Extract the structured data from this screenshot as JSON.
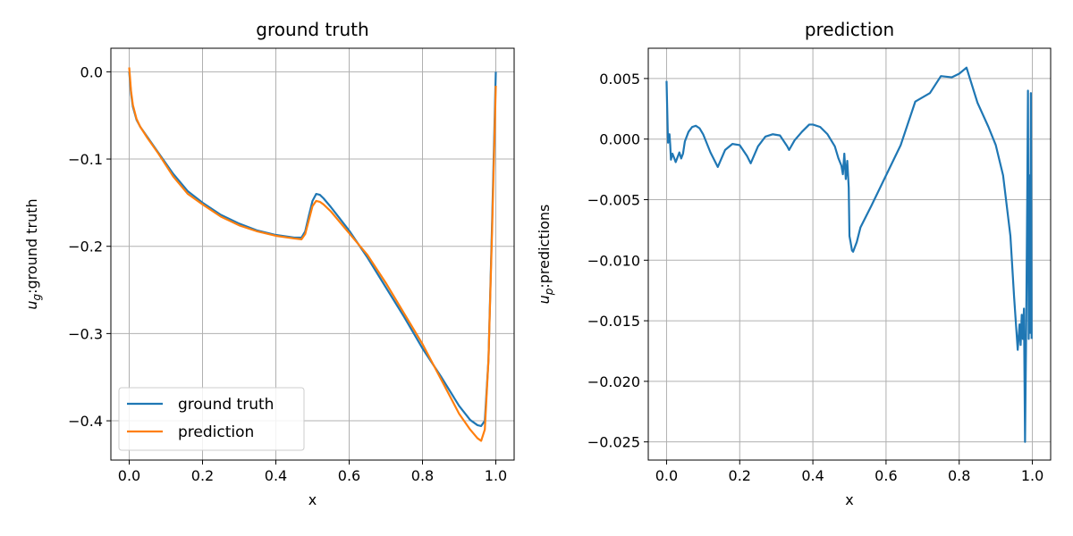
{
  "chart_data": [
    {
      "type": "line",
      "title": "ground truth",
      "xlabel": "x",
      "ylabel_main": "u",
      "ylabel_sub": "g",
      "ylabel_rest": ":ground truth",
      "xlim": [
        -0.05,
        1.05
      ],
      "ylim": [
        -0.445,
        0.027
      ],
      "xticks": [
        0.0,
        0.2,
        0.4,
        0.6,
        0.8,
        1.0
      ],
      "xtick_labels": [
        "0.0",
        "0.2",
        "0.4",
        "0.6",
        "0.8",
        "1.0"
      ],
      "yticks": [
        0.0,
        -0.1,
        -0.2,
        -0.3,
        -0.4
      ],
      "ytick_labels": [
        "0.0",
        "−0.1",
        "−0.2",
        "−0.3",
        "−0.4"
      ],
      "grid": true,
      "legend": "lower-left",
      "series": [
        {
          "name": "ground truth",
          "color": "#1f77b4",
          "x": [
            0.0,
            0.005,
            0.01,
            0.02,
            0.03,
            0.05,
            0.08,
            0.12,
            0.16,
            0.2,
            0.25,
            0.3,
            0.35,
            0.4,
            0.45,
            0.47,
            0.48,
            0.49,
            0.5,
            0.51,
            0.52,
            0.53,
            0.55,
            0.6,
            0.65,
            0.7,
            0.75,
            0.8,
            0.85,
            0.9,
            0.93,
            0.95,
            0.96,
            0.97,
            0.98,
            0.99,
            1.0
          ],
          "y": [
            0.0,
            -0.025,
            -0.04,
            -0.055,
            -0.063,
            -0.075,
            -0.093,
            -0.117,
            -0.137,
            -0.15,
            -0.164,
            -0.174,
            -0.182,
            -0.187,
            -0.19,
            -0.19,
            -0.183,
            -0.165,
            -0.148,
            -0.14,
            -0.141,
            -0.145,
            -0.155,
            -0.182,
            -0.213,
            -0.247,
            -0.281,
            -0.317,
            -0.349,
            -0.383,
            -0.399,
            -0.405,
            -0.406,
            -0.4,
            -0.33,
            -0.17,
            0.0
          ]
        },
        {
          "name": "prediction",
          "color": "#ff7f0e",
          "x": [
            0.0,
            0.005,
            0.01,
            0.02,
            0.03,
            0.05,
            0.08,
            0.12,
            0.16,
            0.2,
            0.25,
            0.3,
            0.35,
            0.4,
            0.45,
            0.47,
            0.48,
            0.49,
            0.5,
            0.51,
            0.52,
            0.53,
            0.55,
            0.6,
            0.65,
            0.7,
            0.75,
            0.8,
            0.85,
            0.9,
            0.93,
            0.95,
            0.96,
            0.97,
            0.98,
            0.99,
            1.0
          ],
          "y": [
            0.005,
            -0.022,
            -0.038,
            -0.054,
            -0.063,
            -0.076,
            -0.094,
            -0.12,
            -0.14,
            -0.152,
            -0.166,
            -0.176,
            -0.183,
            -0.188,
            -0.191,
            -0.192,
            -0.186,
            -0.17,
            -0.154,
            -0.148,
            -0.149,
            -0.152,
            -0.16,
            -0.185,
            -0.21,
            -0.242,
            -0.277,
            -0.312,
            -0.352,
            -0.392,
            -0.41,
            -0.42,
            -0.423,
            -0.41,
            -0.33,
            -0.18,
            -0.016
          ]
        }
      ]
    },
    {
      "type": "line",
      "title": "prediction",
      "xlabel": "x",
      "ylabel_main": "u",
      "ylabel_sub": "p",
      "ylabel_rest": ":predictions",
      "xlim": [
        -0.05,
        1.05
      ],
      "ylim": [
        -0.0265,
        0.0075
      ],
      "xticks": [
        0.0,
        0.2,
        0.4,
        0.6,
        0.8,
        1.0
      ],
      "xtick_labels": [
        "0.0",
        "0.2",
        "0.4",
        "0.6",
        "0.8",
        "1.0"
      ],
      "yticks": [
        0.005,
        0.0,
        -0.005,
        -0.01,
        -0.015,
        -0.02,
        -0.025
      ],
      "ytick_labels": [
        "0.005",
        "0.000",
        "−0.005",
        "−0.010",
        "−0.015",
        "−0.020",
        "−0.025"
      ],
      "grid": true,
      "series": [
        {
          "color": "#1f77b4",
          "x": [
            0.0,
            0.004,
            0.008,
            0.01,
            0.012,
            0.016,
            0.02,
            0.025,
            0.03,
            0.035,
            0.04,
            0.045,
            0.05,
            0.06,
            0.07,
            0.08,
            0.09,
            0.1,
            0.12,
            0.14,
            0.16,
            0.18,
            0.2,
            0.22,
            0.23,
            0.25,
            0.27,
            0.29,
            0.31,
            0.33,
            0.335,
            0.35,
            0.37,
            0.39,
            0.4,
            0.42,
            0.44,
            0.46,
            0.47,
            0.478,
            0.482,
            0.486,
            0.49,
            0.494,
            0.498,
            0.5,
            0.503,
            0.507,
            0.51,
            0.52,
            0.53,
            0.56,
            0.6,
            0.64,
            0.68,
            0.72,
            0.75,
            0.78,
            0.8,
            0.82,
            0.85,
            0.88,
            0.9,
            0.92,
            0.94,
            0.95,
            0.96,
            0.965,
            0.968,
            0.971,
            0.974,
            0.977,
            0.98,
            0.983,
            0.986,
            0.988,
            0.99,
            0.992,
            0.994,
            0.996,
            0.998
          ],
          "y": [
            0.0048,
            -0.0003,
            0.0004,
            -0.0005,
            -0.0017,
            -0.0012,
            -0.0015,
            -0.0019,
            -0.0015,
            -0.0011,
            -0.0016,
            -0.0012,
            -0.0002,
            0.0006,
            0.001,
            0.0011,
            0.0009,
            0.0004,
            -0.0011,
            -0.0023,
            -0.0009,
            -0.0004,
            -0.0005,
            -0.0014,
            -0.002,
            -0.0006,
            0.0002,
            0.0004,
            0.0003,
            -0.0006,
            -0.0009,
            -0.0001,
            0.0006,
            0.0012,
            0.0012,
            0.001,
            0.0004,
            -0.0006,
            -0.0016,
            -0.0022,
            -0.0029,
            -0.0012,
            -0.0033,
            -0.0018,
            -0.004,
            -0.008,
            -0.0085,
            -0.0092,
            -0.0093,
            -0.0085,
            -0.0073,
            -0.0055,
            -0.003,
            -0.0005,
            0.0031,
            0.0038,
            0.0052,
            0.0051,
            0.0054,
            0.0059,
            0.003,
            0.001,
            -0.0005,
            -0.003,
            -0.008,
            -0.013,
            -0.0174,
            -0.0153,
            -0.017,
            -0.0145,
            -0.0165,
            -0.014,
            -0.025,
            -0.016,
            -0.005,
            0.004,
            -0.0165,
            -0.003,
            -0.016,
            0.0038,
            -0.0165
          ]
        }
      ]
    }
  ]
}
